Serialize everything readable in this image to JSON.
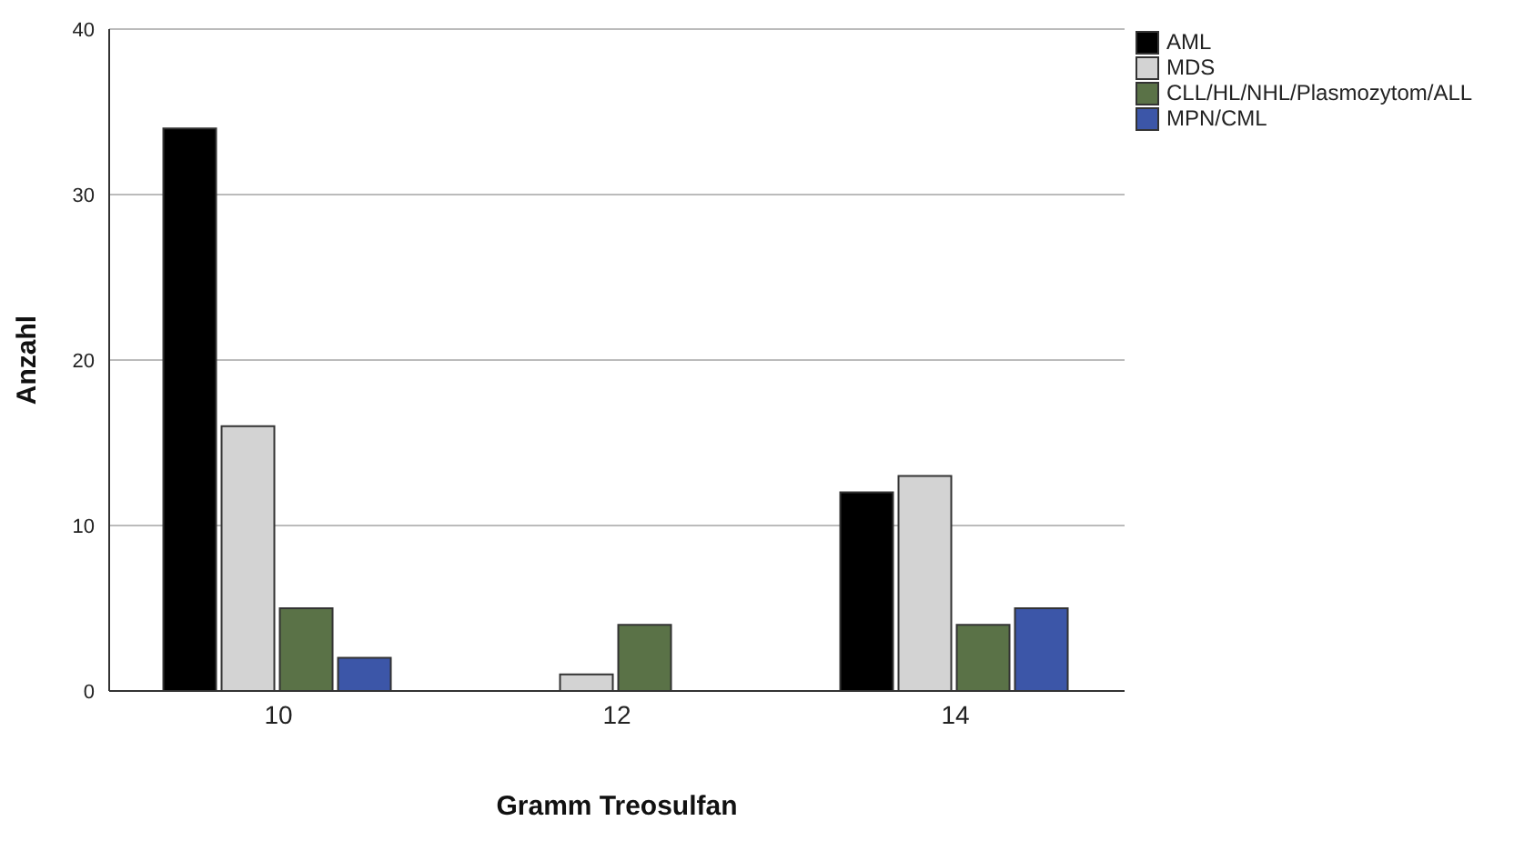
{
  "chart_data": {
    "type": "bar",
    "xlabel": "Gramm Treosulfan",
    "ylabel": "Anzahl",
    "categories": [
      "10",
      "12",
      "14"
    ],
    "series": [
      {
        "name": "AML",
        "color": "#000000",
        "values": [
          34,
          0,
          12
        ]
      },
      {
        "name": "MDS",
        "color": "#d3d3d3",
        "values": [
          16,
          1,
          13
        ]
      },
      {
        "name": "CLL/HL/NHL/Plasmozytom/ALL",
        "color": "#5a7247",
        "values": [
          5,
          4,
          4
        ]
      },
      {
        "name": "MPN/CML",
        "color": "#3c56a8",
        "values": [
          2,
          0,
          5
        ]
      }
    ],
    "ylim": [
      0,
      40
    ],
    "yticks": [
      0,
      10,
      20,
      30,
      40
    ],
    "grid": "y",
    "legend": "top right"
  }
}
